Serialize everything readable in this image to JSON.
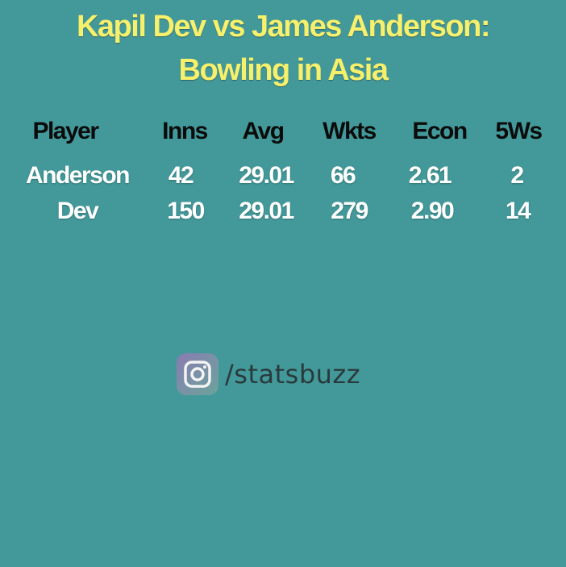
{
  "title": {
    "line1": "Kapil Dev vs James Anderson:",
    "line2": "Bowling in Asia"
  },
  "table": {
    "headers": [
      "Player",
      "Inns",
      "Avg",
      "Wkts",
      "Econ",
      "5Ws"
    ],
    "rows": [
      [
        "Anderson",
        "42",
        "29.01",
        "66",
        "2.61",
        "2"
      ],
      [
        "Dev",
        "150",
        "29.01",
        "279",
        "2.90",
        "14"
      ]
    ]
  },
  "social": {
    "icon": "instagram-icon",
    "handle": "/statsbuzz"
  },
  "colors": {
    "background": "#43999a",
    "title": "#f6f06c",
    "header_text": "#0b0b0b",
    "value_text": "#ffffff"
  }
}
